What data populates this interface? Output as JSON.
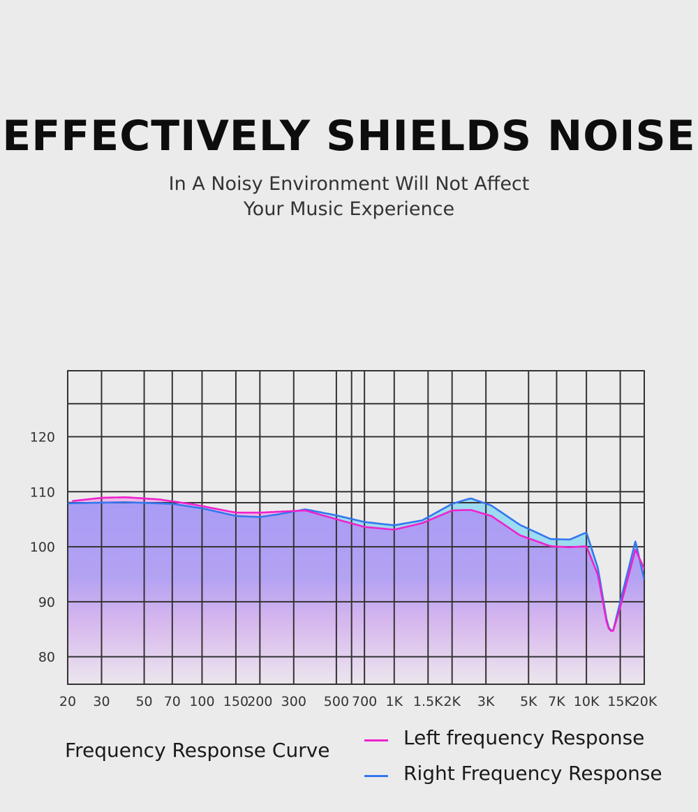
{
  "headline": "EFFECTIVELY SHIELDS NOISE",
  "subtitle_line1": "In A Noisy Environment Will Not Affect",
  "subtitle_line2": "Your Music Experience",
  "caption": "Frequency Response Curve",
  "colors": {
    "left": "#ee22cc",
    "right": "#3377ee",
    "grid": "#333333",
    "fill_top": "#a99cf5",
    "fill_bottom": "#ece6ee",
    "right_excess_fill": "#8fd8f2"
  },
  "chart_data": {
    "type": "line",
    "title": "",
    "xlabel": "",
    "ylabel": "",
    "x_scale": "log",
    "x_ticks": [
      {
        "value": 20,
        "label": "20"
      },
      {
        "value": 30,
        "label": "30"
      },
      {
        "value": 50,
        "label": "50"
      },
      {
        "value": 70,
        "label": "70"
      },
      {
        "value": 100,
        "label": "100"
      },
      {
        "value": 150,
        "label": "150"
      },
      {
        "value": 200,
        "label": "200"
      },
      {
        "value": 300,
        "label": "300"
      },
      {
        "value": 500,
        "label": "500"
      },
      {
        "value": 700,
        "label": "700"
      },
      {
        "value": 1000,
        "label": "1K"
      },
      {
        "value": 1500,
        "label": "1.5K"
      },
      {
        "value": 2000,
        "label": "2K"
      },
      {
        "value": 3000,
        "label": "3K"
      },
      {
        "value": 5000,
        "label": "5K"
      },
      {
        "value": 7000,
        "label": "7K"
      },
      {
        "value": 10000,
        "label": "10K"
      },
      {
        "value": 15000,
        "label": "15K"
      },
      {
        "value": 20000,
        "label": "20K"
      }
    ],
    "y_ticks": [
      {
        "value": 80,
        "label": "80"
      },
      {
        "value": 90,
        "label": "90"
      },
      {
        "value": 100,
        "label": "100"
      },
      {
        "value": 110,
        "label": "110"
      },
      {
        "value": 120,
        "label": "120"
      }
    ],
    "ylim": [
      75,
      132
    ],
    "grid": true,
    "legend_position": "bottom-right",
    "series": [
      {
        "name": "Left frequency Response",
        "color": "#ee22cc",
        "points": [
          [
            21,
            108.3
          ],
          [
            30,
            108.9
          ],
          [
            40,
            109.0
          ],
          [
            60,
            108.6
          ],
          [
            90,
            107.7
          ],
          [
            150,
            106.2
          ],
          [
            200,
            106.2
          ],
          [
            300,
            106.5
          ],
          [
            345,
            106.6
          ],
          [
            500,
            105.0
          ],
          [
            700,
            103.6
          ],
          [
            1000,
            103.1
          ],
          [
            1400,
            104.3
          ],
          [
            2000,
            106.6
          ],
          [
            2500,
            106.7
          ],
          [
            3200,
            105.6
          ],
          [
            4500,
            102.1
          ],
          [
            6500,
            100.1
          ],
          [
            8200,
            99.9
          ],
          [
            10000,
            100.1
          ],
          [
            11500,
            94.8
          ],
          [
            12900,
            85.3
          ],
          [
            13700,
            84.4
          ],
          [
            15000,
            89.0
          ],
          [
            18000,
            99.5
          ],
          [
            20000,
            96.0
          ]
        ]
      },
      {
        "name": "Right Frequency Response",
        "color": "#3377ee",
        "points": [
          [
            20,
            107.9
          ],
          [
            40,
            108.1
          ],
          [
            70,
            107.8
          ],
          [
            100,
            107.0
          ],
          [
            150,
            105.6
          ],
          [
            200,
            105.4
          ],
          [
            250,
            105.9
          ],
          [
            345,
            106.8
          ],
          [
            500,
            105.7
          ],
          [
            700,
            104.5
          ],
          [
            1000,
            103.9
          ],
          [
            1400,
            104.8
          ],
          [
            2000,
            107.8
          ],
          [
            2500,
            108.8
          ],
          [
            3200,
            107.5
          ],
          [
            4500,
            104.0
          ],
          [
            6500,
            101.4
          ],
          [
            8200,
            101.3
          ],
          [
            10000,
            102.6
          ],
          [
            11500,
            96.0
          ],
          [
            12900,
            85.6
          ],
          [
            13700,
            84.4
          ],
          [
            15000,
            90.0
          ],
          [
            18000,
            101.0
          ],
          [
            20000,
            94.0
          ]
        ]
      }
    ]
  }
}
